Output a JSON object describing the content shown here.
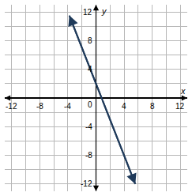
{
  "chart_data": {
    "type": "line",
    "x": [
      -3.8,
      5.6
    ],
    "values": [
      11.5,
      -12
    ],
    "color": "#1f3a5a",
    "xlabel": "x",
    "ylabel": "y",
    "xlim": [
      -13,
      13
    ],
    "ylim": [
      -13,
      13
    ],
    "xticks": [
      -12,
      -8,
      -4,
      0,
      4,
      8,
      12
    ],
    "yticks": [
      -12,
      -8,
      -4,
      0,
      4,
      8,
      12
    ],
    "grid": true
  }
}
